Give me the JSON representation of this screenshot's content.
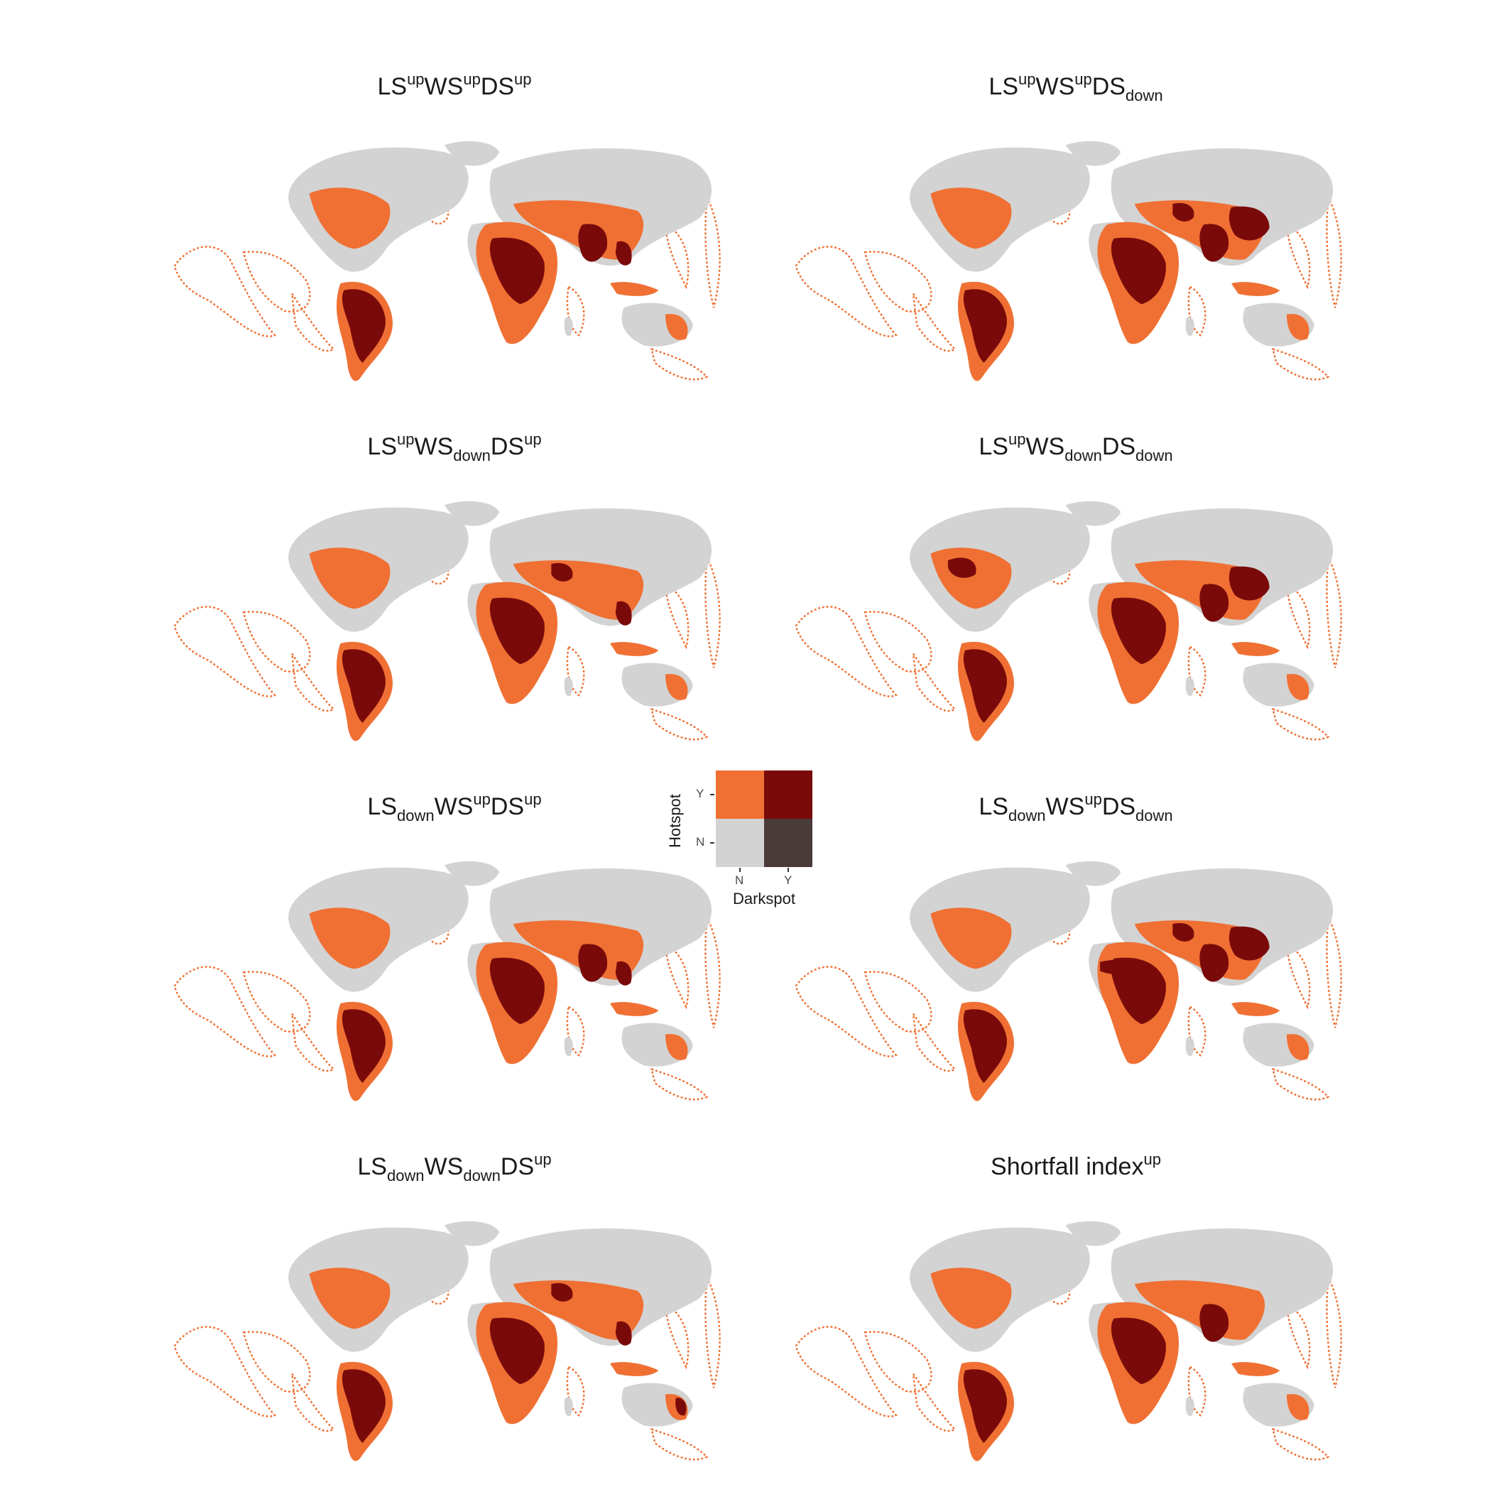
{
  "colors": {
    "land": "#d3d3d3",
    "hotspot_only": "#f07033",
    "hot_and_dark": "#7a0a0a",
    "darkspot_only": "#4a3a3a",
    "neither": "#d3d3d3",
    "ocean_outline": "#f07033"
  },
  "panels": [
    {
      "title_parts": [
        [
          "LS",
          ""
        ],
        [
          "up",
          "sup"
        ],
        [
          "WS",
          ""
        ],
        [
          "up",
          "sup"
        ],
        [
          "DS",
          ""
        ],
        [
          "up",
          "sup"
        ]
      ],
      "dark_regions": [
        "south-america",
        "central-africa",
        "india",
        "southeast-asia"
      ]
    },
    {
      "title_parts": [
        [
          "LS",
          ""
        ],
        [
          "up",
          "sup"
        ],
        [
          "WS",
          ""
        ],
        [
          "up",
          "sup"
        ],
        [
          "DS",
          ""
        ],
        [
          "down",
          "sub"
        ]
      ],
      "dark_regions": [
        "south-america",
        "central-africa",
        "india",
        "china",
        "middle-east"
      ]
    },
    {
      "title_parts": [
        [
          "LS",
          ""
        ],
        [
          "up",
          "sup"
        ],
        [
          "WS",
          ""
        ],
        [
          "down",
          "sub"
        ],
        [
          "DS",
          ""
        ],
        [
          "up",
          "sup"
        ]
      ],
      "dark_regions": [
        "south-america",
        "central-africa",
        "southeast-asia",
        "middle-east"
      ]
    },
    {
      "title_parts": [
        [
          "LS",
          ""
        ],
        [
          "up",
          "sup"
        ],
        [
          "WS",
          ""
        ],
        [
          "down",
          "sub"
        ],
        [
          "DS",
          ""
        ],
        [
          "down",
          "sub"
        ]
      ],
      "dark_regions": [
        "south-america",
        "central-africa",
        "india",
        "china",
        "usa-midwest"
      ]
    },
    {
      "title_parts": [
        [
          "LS",
          ""
        ],
        [
          "down",
          "sub"
        ],
        [
          "WS",
          ""
        ],
        [
          "up",
          "sup"
        ],
        [
          "DS",
          ""
        ],
        [
          "up",
          "sup"
        ]
      ],
      "dark_regions": [
        "south-america",
        "central-africa",
        "india",
        "southeast-asia"
      ]
    },
    {
      "title_parts": [
        [
          "LS",
          ""
        ],
        [
          "down",
          "sub"
        ],
        [
          "WS",
          ""
        ],
        [
          "up",
          "sup"
        ],
        [
          "DS",
          ""
        ],
        [
          "down",
          "sub"
        ]
      ],
      "dark_regions": [
        "south-america",
        "central-africa",
        "india",
        "china",
        "middle-east",
        "sahel"
      ]
    },
    {
      "title_parts": [
        [
          "LS",
          ""
        ],
        [
          "down",
          "sub"
        ],
        [
          "WS",
          ""
        ],
        [
          "down",
          "sub"
        ],
        [
          "DS",
          ""
        ],
        [
          "up",
          "sup"
        ]
      ],
      "dark_regions": [
        "south-america",
        "central-africa",
        "middle-east",
        "southeast-asia",
        "australia-east"
      ]
    },
    {
      "title_parts": [
        [
          "Shortfall index",
          ""
        ],
        [
          "up",
          "sup"
        ]
      ],
      "dark_regions": [
        "south-america",
        "central-africa",
        "india"
      ]
    }
  ],
  "legend": {
    "y_title": "Hotspot",
    "x_title": "Darkspot",
    "y_ticks": [
      "Y",
      "N"
    ],
    "x_ticks": [
      "N",
      "Y"
    ]
  }
}
